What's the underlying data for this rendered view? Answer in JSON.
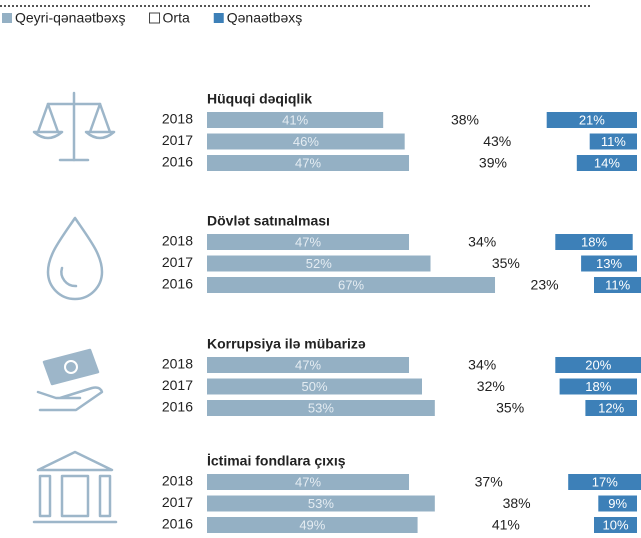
{
  "chart_data": {
    "type": "bar",
    "series": [
      {
        "name": "Qeyri-qənaətbəxş",
        "color": "#94b0c4",
        "values": [
          [
            41,
            46,
            47
          ],
          [
            47,
            52,
            67
          ],
          [
            47,
            50,
            53
          ],
          [
            47,
            53,
            49
          ]
        ]
      },
      {
        "name": "Orta",
        "color": "#ffffff",
        "values": [
          [
            38,
            43,
            39
          ],
          [
            34,
            35,
            23
          ],
          [
            34,
            32,
            35
          ],
          [
            37,
            38,
            41
          ]
        ]
      },
      {
        "name": "Qənaətbəxş",
        "color": "#3d80b8",
        "values": [
          [
            21,
            11,
            14
          ],
          [
            18,
            13,
            11
          ],
          [
            20,
            18,
            12
          ],
          [
            17,
            9,
            10
          ]
        ]
      }
    ],
    "groups": [
      {
        "title": "Hüquqi dəqiqlik",
        "categories": [
          "2018",
          "2017",
          "2016"
        ]
      },
      {
        "title": "Dövlət satınalması",
        "categories": [
          "2018",
          "2017",
          "2016"
        ]
      },
      {
        "title": "Korrupsiya ilə mübarizə",
        "categories": [
          "2018",
          "2017",
          "2016"
        ]
      },
      {
        "title": "İctimai fondlara çıxış",
        "categories": [
          "2018",
          "2017",
          "2016"
        ]
      }
    ]
  }
}
